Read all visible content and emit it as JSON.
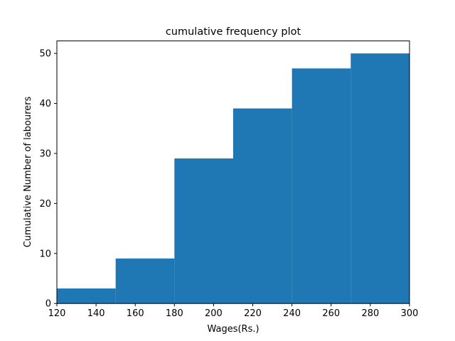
{
  "chart_data": {
    "type": "bar",
    "title": "cumulative frequency plot",
    "xlabel": "Wages(Rs.)",
    "ylabel": "Cumulative Number of labourers",
    "bins": [
      {
        "x0": 120,
        "x1": 150,
        "value": 3
      },
      {
        "x0": 150,
        "x1": 180,
        "value": 9
      },
      {
        "x0": 180,
        "x1": 210,
        "value": 29
      },
      {
        "x0": 210,
        "x1": 240,
        "value": 39
      },
      {
        "x0": 240,
        "x1": 270,
        "value": 47
      },
      {
        "x0": 270,
        "x1": 300,
        "value": 50
      }
    ],
    "xlim": [
      120,
      300
    ],
    "ylim": [
      0,
      52.5
    ],
    "xticks": [
      120,
      140,
      160,
      180,
      200,
      220,
      240,
      260,
      280,
      300
    ],
    "yticks": [
      0,
      10,
      20,
      30,
      40,
      50
    ],
    "grid": false,
    "bar_color": "#1f77b4"
  }
}
